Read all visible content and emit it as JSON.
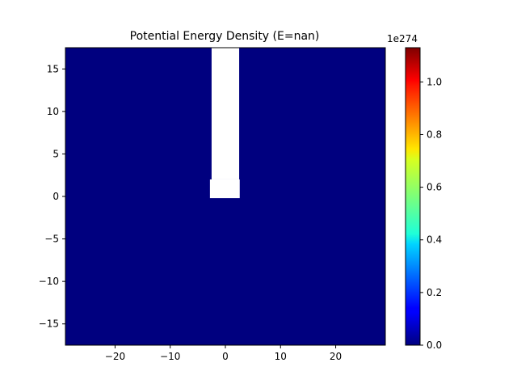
{
  "chart_data": {
    "type": "heatmap",
    "title": "Potential Energy Density (E=nan)",
    "xlabel": "",
    "ylabel": "",
    "xlim": [
      -29,
      29
    ],
    "ylim": [
      -17.5,
      17.5
    ],
    "x_ticks": [
      -20,
      -10,
      0,
      10,
      20
    ],
    "x_tick_labels": [
      "−20",
      "−10",
      "0",
      "10",
      "20"
    ],
    "y_ticks": [
      -15,
      -10,
      -5,
      0,
      5,
      10,
      15
    ],
    "y_tick_labels": [
      "−15",
      "−10",
      "−5",
      "0",
      "5",
      "10",
      "15"
    ],
    "field_value": 0.0,
    "nan_regions": [
      {
        "x": [
          -2.5,
          2.5
        ],
        "y": [
          2.0,
          17.5
        ]
      },
      {
        "x": [
          -2.8,
          2.6
        ],
        "y": [
          -0.2,
          2.0
        ]
      }
    ],
    "colormap": "jet",
    "colorbar": {
      "range": [
        0.0,
        1.13
      ],
      "ticks": [
        0.0,
        0.2,
        0.4,
        0.6,
        0.8,
        1.0
      ],
      "tick_labels": [
        "0.0",
        "0.2",
        "0.4",
        "0.6",
        "0.8",
        "1.0"
      ],
      "offset_label": "1e274"
    },
    "grid": false
  }
}
